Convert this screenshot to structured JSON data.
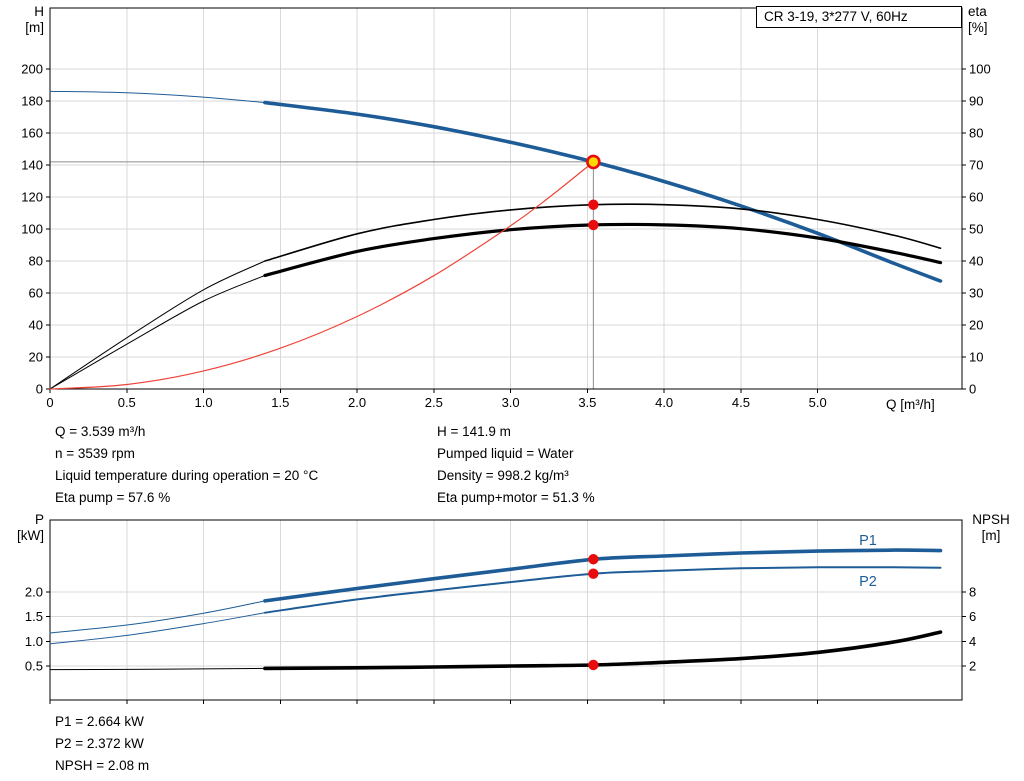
{
  "legend": {
    "label": "CR 3-19, 3*277 V, 60Hz"
  },
  "colors": {
    "blue": "#1e5c97",
    "black": "#000000",
    "red": "#ee4438",
    "marker_red": "#e80c0c",
    "duty_yellow": "#ffd900",
    "grid": "#d9d9d9",
    "crosshair": "#8c8c8c",
    "frame": "#000000",
    "text": "#000000"
  },
  "info_top": {
    "left": [
      "Q = 3.539 m³/h",
      "n = 3539 rpm",
      "Liquid temperature during operation = 20 °C",
      "Eta pump = 57.6 %"
    ],
    "right": [
      "H = 141.9 m",
      "Pumped liquid = Water",
      "Density = 998.2 kg/m³",
      "Eta pump+motor = 51.3 %"
    ]
  },
  "info_bottom": [
    "P1 = 2.664 kW",
    "P2 = 2.372 kW",
    "NPSH = 2.08 m"
  ],
  "chart_data": [
    {
      "type": "line",
      "title": "CR 3-19, 3*277 V, 60Hz",
      "x_axis": {
        "label": "Q [m³/h]",
        "min": 0,
        "max": 5.94,
        "ticks": [
          0,
          0.5,
          1,
          1.5,
          2,
          2.5,
          3,
          3.5,
          4,
          4.5,
          5
        ],
        "tick_labels": [
          "0",
          "0.5",
          "1.0",
          "1.5",
          "2.0",
          "2.5",
          "3.0",
          "3.5",
          "4.0",
          "4.5",
          "5.0"
        ],
        "show_tick_labels": true
      },
      "y_left": {
        "label": "H [m]",
        "label_lines": [
          "H",
          "[m]"
        ],
        "min": 0,
        "max": 238.1,
        "ticks": [
          0,
          20,
          40,
          60,
          80,
          100,
          120,
          140,
          160,
          180,
          200
        ],
        "tick_labels": [
          "0",
          "20",
          "40",
          "60",
          "80",
          "100",
          "120",
          "140",
          "160",
          "180",
          "200"
        ]
      },
      "y_right": {
        "label": "eta [%]",
        "label_lines": [
          "eta",
          "[%]"
        ],
        "min": 0,
        "max": 119.1,
        "ticks": [
          0,
          10,
          20,
          30,
          40,
          50,
          60,
          70,
          80,
          90,
          100
        ],
        "tick_labels": [
          "0",
          "10",
          "20",
          "30",
          "40",
          "50",
          "60",
          "70",
          "80",
          "90",
          "100"
        ]
      },
      "series": [
        {
          "name": "H low-flow",
          "axis": "left",
          "color": "blue",
          "width": 1,
          "points": [
            [
              0,
              186
            ],
            [
              0.5,
              185.1
            ],
            [
              1,
              182.4
            ],
            [
              1.5,
              178.1
            ]
          ]
        },
        {
          "name": "H",
          "axis": "left",
          "color": "blue",
          "width": 3.6,
          "points": [
            [
              1.4,
              179
            ],
            [
              2,
              171.8
            ],
            [
              2.5,
              163.9
            ],
            [
              3,
              154.2
            ],
            [
              3.539,
              141.9
            ],
            [
              4,
              129.7
            ],
            [
              4.5,
              114.4
            ],
            [
              5,
              97.3
            ],
            [
              5.5,
              78.4
            ],
            [
              5.8,
              67.5
            ]
          ]
        },
        {
          "name": "Eta pump low-flow",
          "axis": "right",
          "color": "black",
          "width": 1,
          "points": [
            [
              0,
              0
            ],
            [
              0.5,
              16
            ],
            [
              1,
              31
            ],
            [
              1.4,
              40
            ]
          ]
        },
        {
          "name": "Eta pump",
          "axis": "right",
          "color": "black",
          "width": 1.6,
          "points": [
            [
              1.4,
              40
            ],
            [
              2,
              48.5
            ],
            [
              2.5,
              53
            ],
            [
              3,
              56
            ],
            [
              3.539,
              57.6
            ],
            [
              4,
              57.6
            ],
            [
              4.5,
              56.3
            ],
            [
              5,
              53
            ],
            [
              5.5,
              48
            ],
            [
              5.8,
              44
            ]
          ]
        },
        {
          "name": "Eta pump+motor low-flow",
          "axis": "right",
          "color": "black",
          "width": 1,
          "points": [
            [
              0,
              0
            ],
            [
              0.5,
              14
            ],
            [
              1,
              27.5
            ],
            [
              1.4,
              35.5
            ]
          ]
        },
        {
          "name": "Eta pump+motor",
          "axis": "right",
          "color": "black",
          "width": 3.2,
          "points": [
            [
              1.4,
              35.5
            ],
            [
              2,
              43
            ],
            [
              2.5,
              47
            ],
            [
              3,
              49.8
            ],
            [
              3.539,
              51.3
            ],
            [
              4,
              51.3
            ],
            [
              4.5,
              50.1
            ],
            [
              5,
              47.2
            ],
            [
              5.5,
              42.7
            ],
            [
              5.8,
              39.5
            ]
          ]
        },
        {
          "name": "System curve",
          "axis": "left",
          "color": "red",
          "width": 1.2,
          "points": [
            [
              0,
              0
            ],
            [
              0.5,
              2.8
            ],
            [
              1,
              11.3
            ],
            [
              1.5,
              25.5
            ],
            [
              2,
              45.3
            ],
            [
              2.5,
              70.8
            ],
            [
              3,
              102
            ],
            [
              3.25,
              119.7
            ],
            [
              3.539,
              141.9
            ]
          ]
        }
      ],
      "crosshair": {
        "h": {
          "y": 141.9,
          "x1": 0,
          "x2": 3.539
        },
        "v": {
          "x": 3.539,
          "y1": 141.9,
          "y2": 0
        }
      },
      "markers": [
        {
          "name": "duty-point-marker",
          "x": 3.539,
          "value": 141.9,
          "axis": "left",
          "style": "duty"
        },
        {
          "name": "eta-pump-point",
          "x": 3.539,
          "value": 57.6,
          "axis": "right",
          "style": "dot"
        },
        {
          "name": "eta-pump-motor-point",
          "x": 3.539,
          "value": 51.3,
          "axis": "right",
          "style": "dot"
        }
      ],
      "annotations": []
    },
    {
      "type": "line",
      "title": "Power and NPSH curves",
      "x_axis": {
        "label": "",
        "min": 0,
        "max": 5.94,
        "ticks": [
          0,
          0.5,
          1,
          1.5,
          2,
          2.5,
          3,
          3.5,
          4,
          4.5,
          5
        ],
        "tick_labels": [],
        "show_tick_labels": false
      },
      "y_left": {
        "label": "P [kW]",
        "label_lines": [
          "P",
          "[kW]"
        ],
        "min": -0.19,
        "max": 3.46,
        "ticks": [
          0.5,
          1,
          1.5,
          2
        ],
        "tick_labels": [
          "0.5",
          "1.0",
          "1.5",
          "2.0"
        ]
      },
      "y_right": {
        "label": "NPSH [m]",
        "label_lines": [
          "NPSH",
          "[m]"
        ],
        "min": -0.76,
        "max": 13.84,
        "ticks": [
          2,
          4,
          6,
          8
        ],
        "tick_labels": [
          "2",
          "4",
          "6",
          "8"
        ]
      },
      "series": [
        {
          "name": "P1 low-flow",
          "axis": "left",
          "color": "blue",
          "width": 1,
          "points": [
            [
              0,
              1.17
            ],
            [
              0.5,
              1.33
            ],
            [
              1,
              1.57
            ],
            [
              1.4,
              1.82
            ]
          ]
        },
        {
          "name": "P1",
          "axis": "left",
          "color": "blue",
          "width": 3.6,
          "points": [
            [
              1.4,
              1.82
            ],
            [
              2,
              2.07
            ],
            [
              2.5,
              2.27
            ],
            [
              3,
              2.46
            ],
            [
              3.539,
              2.664
            ],
            [
              4,
              2.73
            ],
            [
              4.5,
              2.79
            ],
            [
              5,
              2.83
            ],
            [
              5.5,
              2.85
            ],
            [
              5.8,
              2.84
            ]
          ]
        },
        {
          "name": "P2 low-flow",
          "axis": "left",
          "color": "blue",
          "width": 1,
          "points": [
            [
              0,
              0.95
            ],
            [
              0.5,
              1.12
            ],
            [
              1,
              1.36
            ],
            [
              1.4,
              1.58
            ]
          ]
        },
        {
          "name": "P2",
          "axis": "left",
          "color": "blue",
          "width": 2,
          "points": [
            [
              1.4,
              1.58
            ],
            [
              2,
              1.85
            ],
            [
              2.5,
              2.03
            ],
            [
              3,
              2.2
            ],
            [
              3.539,
              2.372
            ],
            [
              4,
              2.43
            ],
            [
              4.5,
              2.48
            ],
            [
              5,
              2.5
            ],
            [
              5.5,
              2.5
            ],
            [
              5.8,
              2.49
            ]
          ]
        },
        {
          "name": "NPSH low-flow",
          "axis": "right",
          "color": "black",
          "width": 1,
          "points": [
            [
              0,
              1.7
            ],
            [
              0.5,
              1.72
            ],
            [
              1,
              1.76
            ],
            [
              1.4,
              1.8
            ]
          ]
        },
        {
          "name": "NPSH",
          "axis": "right",
          "color": "black",
          "width": 3.6,
          "points": [
            [
              1.4,
              1.8
            ],
            [
              2,
              1.85
            ],
            [
              2.5,
              1.92
            ],
            [
              3,
              2.0
            ],
            [
              3.539,
              2.08
            ],
            [
              4,
              2.3
            ],
            [
              4.5,
              2.6
            ],
            [
              5,
              3.1
            ],
            [
              5.5,
              3.95
            ],
            [
              5.8,
              4.75
            ]
          ]
        }
      ],
      "markers": [
        {
          "name": "p1-point",
          "x": 3.539,
          "value": 2.664,
          "axis": "left",
          "style": "dot"
        },
        {
          "name": "p2-point",
          "x": 3.539,
          "value": 2.372,
          "axis": "left",
          "style": "dot"
        },
        {
          "name": "npsh-point",
          "x": 3.539,
          "value": 2.08,
          "axis": "right",
          "style": "dot"
        }
      ],
      "annotations": [
        {
          "text": "P1",
          "x": 5.27,
          "value": 3.05,
          "axis": "left",
          "color": "blue"
        },
        {
          "text": "P2",
          "x": 5.27,
          "value": 2.22,
          "axis": "left",
          "color": "blue"
        }
      ]
    }
  ]
}
